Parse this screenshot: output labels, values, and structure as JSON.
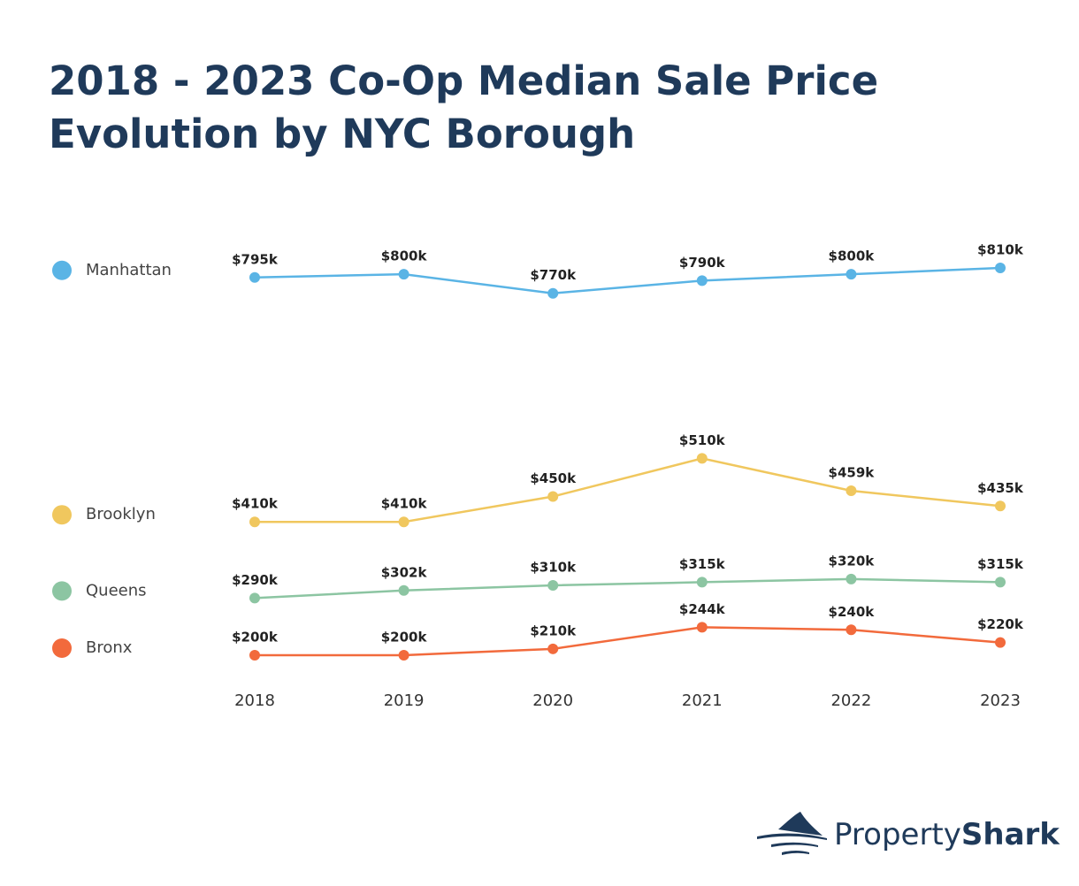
{
  "chart_data": {
    "type": "line",
    "title": "2018 - 2023 Co-Op Median Sale Price Evolution by NYC Borough",
    "categories": [
      "2018",
      "2019",
      "2020",
      "2021",
      "2022",
      "2023"
    ],
    "series": [
      {
        "name": "Manhattan",
        "color": "#5ab4e5",
        "values": [
          795,
          800,
          770,
          790,
          800,
          810
        ],
        "value_labels": [
          "$795k",
          "$800k",
          "$770k",
          "$790k",
          "$800k",
          "$810k"
        ]
      },
      {
        "name": "Brooklyn",
        "color": "#f0c75e",
        "values": [
          410,
          410,
          450,
          510,
          459,
          435
        ],
        "value_labels": [
          "$410k",
          "$410k",
          "$450k",
          "$510k",
          "$459k",
          "$435k"
        ]
      },
      {
        "name": "Queens",
        "color": "#8cc5a2",
        "values": [
          290,
          302,
          310,
          315,
          320,
          315
        ],
        "value_labels": [
          "$290k",
          "$302k",
          "$310k",
          "$315k",
          "$320k",
          "$315k"
        ]
      },
      {
        "name": "Bronx",
        "color": "#f26a3c",
        "values": [
          200,
          200,
          210,
          244,
          240,
          220
        ],
        "value_labels": [
          "$200k",
          "$200k",
          "$210k",
          "$244k",
          "$240k",
          "$220k"
        ]
      }
    ]
  },
  "brand": [
    "Property",
    "Shark"
  ]
}
